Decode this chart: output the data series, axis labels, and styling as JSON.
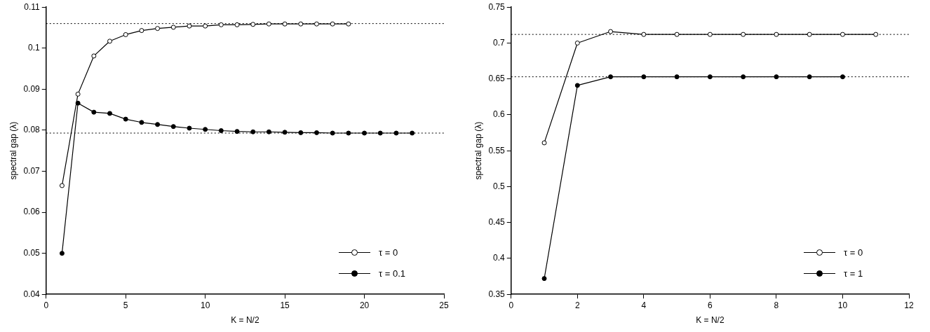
{
  "chart_data": [
    {
      "type": "line",
      "xlabel": "K = N/2",
      "ylabel": "spectral gap (λ)",
      "xlim": [
        0,
        25
      ],
      "xticks": [
        0,
        5,
        10,
        15,
        20,
        25
      ],
      "ylim": [
        0.04,
        0.11
      ],
      "yticks": [
        0.04,
        0.05,
        0.06,
        0.07,
        0.08,
        0.09,
        0.1,
        0.11
      ],
      "grid": false,
      "legend": "bottom right",
      "marker": "circle",
      "line_style": "solid",
      "series": [
        {
          "name": "τ = 0",
          "color": "#000000",
          "x": [
            1,
            2,
            3,
            4,
            5,
            6,
            7,
            8,
            9,
            10,
            11,
            12,
            13,
            14,
            15,
            16,
            17,
            18,
            19
          ],
          "values": [
            0.0665,
            0.0888,
            0.0981,
            0.1017,
            0.1033,
            0.1043,
            0.1048,
            0.1051,
            0.1054,
            0.1054,
            0.1057,
            0.1057,
            0.1058,
            0.1059,
            0.1059,
            0.1059,
            0.1059,
            0.1059,
            0.1059
          ]
        },
        {
          "name": "τ = 0.1",
          "color": "#000000",
          "x": [
            1,
            2,
            3,
            4,
            5,
            6,
            7,
            8,
            9,
            10,
            11,
            12,
            13,
            14,
            15,
            16,
            17,
            18,
            19,
            20,
            21,
            22,
            23
          ],
          "values": [
            0.05,
            0.0866,
            0.0844,
            0.0841,
            0.0827,
            0.0819,
            0.0814,
            0.0809,
            0.0805,
            0.0802,
            0.0799,
            0.0797,
            0.0796,
            0.0796,
            0.0795,
            0.0794,
            0.0794,
            0.0793,
            0.0793,
            0.0793,
            0.0793,
            0.0793,
            0.0793
          ]
        }
      ],
      "ref_lines": [
        {
          "axis": "y",
          "value": 0.106,
          "color": "#000000",
          "line_style": "dotted"
        },
        {
          "axis": "y",
          "value": 0.0793,
          "color": "#000000",
          "line_style": "dotted"
        }
      ]
    },
    {
      "type": "line",
      "xlabel": "K = N/2",
      "ylabel": "spectral gap (λ)",
      "xlim": [
        0,
        12
      ],
      "xticks": [
        0,
        2,
        4,
        6,
        8,
        10,
        12
      ],
      "ylim": [
        0.35,
        0.75
      ],
      "yticks": [
        0.35,
        0.4,
        0.45,
        0.5,
        0.55,
        0.6,
        0.65,
        0.7,
        0.75
      ],
      "grid": false,
      "legend": "bottom right",
      "marker": "circle",
      "line_style": "solid",
      "series": [
        {
          "name": "τ = 0",
          "color": "#000000",
          "x": [
            1,
            2,
            3,
            4,
            5,
            6,
            7,
            8,
            9,
            10,
            11
          ],
          "values": [
            0.561,
            0.7,
            0.716,
            0.712,
            0.712,
            0.712,
            0.712,
            0.712,
            0.712,
            0.712,
            0.712
          ]
        },
        {
          "name": "τ = 1",
          "color": "#000000",
          "x": [
            1,
            2,
            3,
            4,
            5,
            6,
            7,
            8,
            9,
            10
          ],
          "values": [
            0.372,
            0.641,
            0.653,
            0.653,
            0.653,
            0.653,
            0.653,
            0.653,
            0.653,
            0.653
          ]
        }
      ],
      "ref_lines": [
        {
          "axis": "y",
          "value": 0.712,
          "color": "#000000",
          "line_style": "dotted"
        },
        {
          "axis": "y",
          "value": 0.653,
          "color": "#000000",
          "line_style": "dotted"
        }
      ]
    }
  ]
}
